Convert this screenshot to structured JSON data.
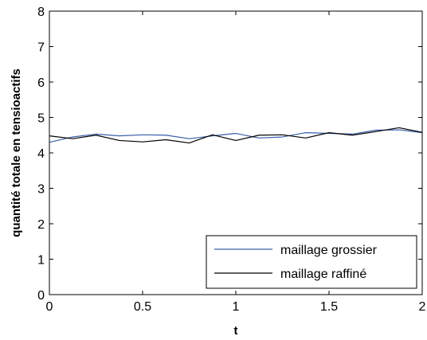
{
  "chart_data": {
    "type": "line",
    "xlabel": "t",
    "ylabel": "quantité totale en tensioactifs",
    "xlim": [
      0,
      2
    ],
    "ylim": [
      0,
      8
    ],
    "xticks": [
      0,
      0.5,
      1,
      1.5,
      2
    ],
    "xtick_labels": [
      "0",
      "0.5",
      "1",
      "1.5",
      "2"
    ],
    "yticks": [
      0,
      1,
      2,
      3,
      4,
      5,
      6,
      7,
      8
    ],
    "ytick_labels": [
      "0",
      "1",
      "2",
      "3",
      "4",
      "5",
      "6",
      "7",
      "8"
    ],
    "grid": false,
    "legend_position": "bottom-right",
    "series": [
      {
        "name": "maillage grossier",
        "color": "#3a5fa8",
        "x": [
          0,
          0.125,
          0.25,
          0.375,
          0.5,
          0.625,
          0.75,
          0.875,
          1.0,
          1.125,
          1.25,
          1.375,
          1.5,
          1.625,
          1.75,
          1.875,
          2.0
        ],
        "y": [
          4.3,
          4.45,
          4.53,
          4.48,
          4.51,
          4.5,
          4.4,
          4.48,
          4.55,
          4.42,
          4.45,
          4.57,
          4.55,
          4.53,
          4.64,
          4.65,
          4.57
        ]
      },
      {
        "name": "maillage raffiné",
        "color": "#000000",
        "x": [
          0,
          0.125,
          0.25,
          0.375,
          0.5,
          0.625,
          0.75,
          0.875,
          1.0,
          1.125,
          1.25,
          1.375,
          1.5,
          1.625,
          1.75,
          1.875,
          2.0
        ],
        "y": [
          4.48,
          4.4,
          4.5,
          4.35,
          4.31,
          4.37,
          4.28,
          4.51,
          4.35,
          4.5,
          4.51,
          4.42,
          4.57,
          4.5,
          4.6,
          4.71,
          4.58
        ]
      }
    ]
  }
}
